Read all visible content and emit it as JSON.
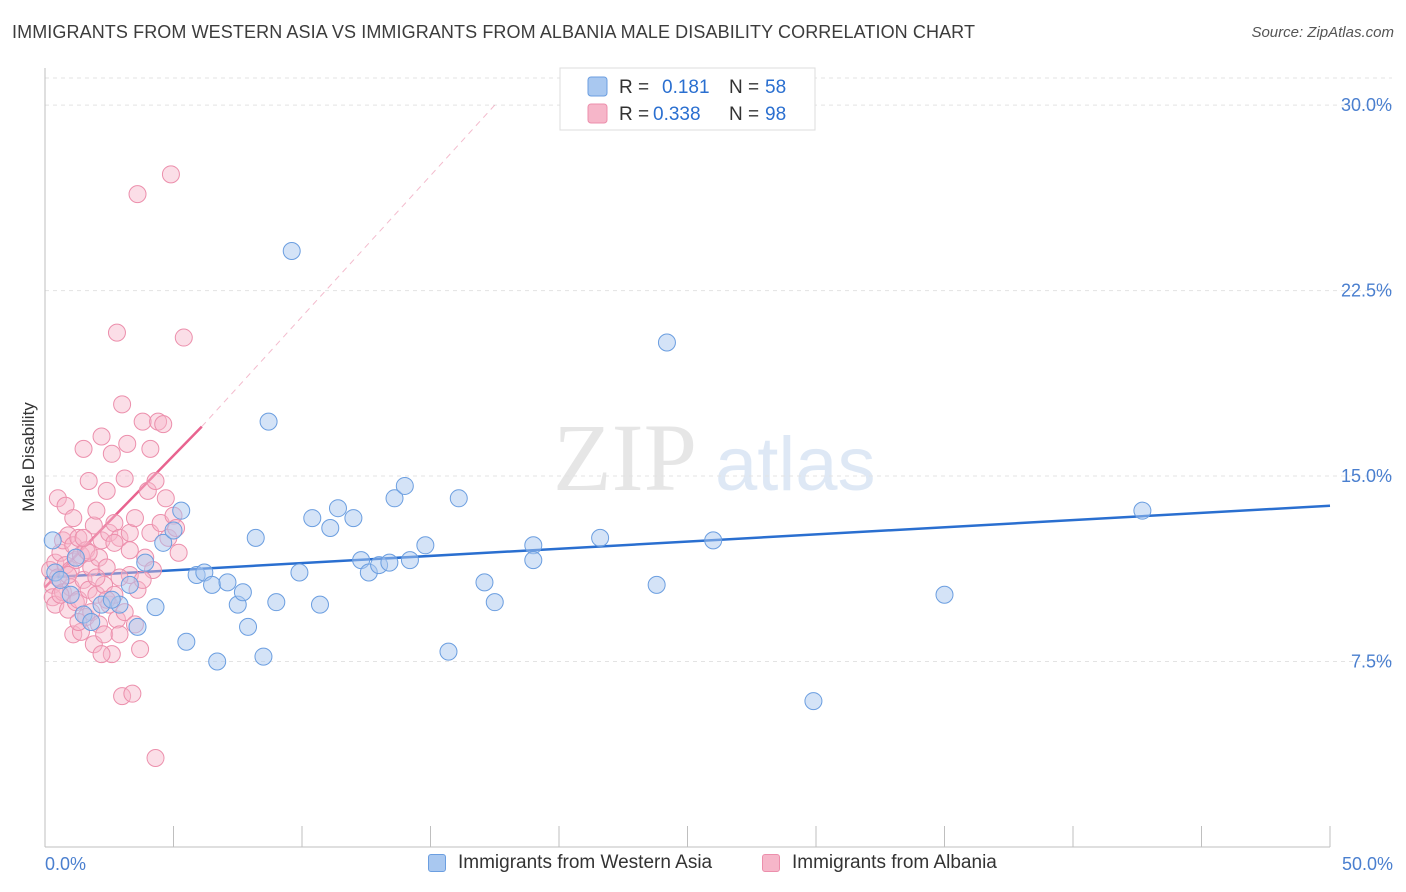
{
  "title": "IMMIGRANTS FROM WESTERN ASIA VS IMMIGRANTS FROM ALBANIA MALE DISABILITY CORRELATION CHART",
  "source": "Source: ZipAtlas.com",
  "watermark": {
    "zip": "ZIP",
    "atlas": "atlas"
  },
  "colors": {
    "blue_fill": "#a9c8f0",
    "blue_stroke": "#6b9ee0",
    "blue_line": "#2a6fd0",
    "pink_fill": "#f6b6c9",
    "pink_stroke": "#ec8fac",
    "pink_line": "#e8638f",
    "tick_text": "#4a7fcf",
    "grid": "#e3e3e3"
  },
  "legend": {
    "series1": {
      "r_label": "R =",
      "r_value": "0.181",
      "n_label": "N =",
      "n_value": "58"
    },
    "series2": {
      "r_label": "R =",
      "r_value": "0.338",
      "n_label": "N =",
      "n_value": "98"
    }
  },
  "chart_data": {
    "type": "scatter",
    "title": "IMMIGRANTS FROM WESTERN ASIA VS IMMIGRANTS FROM ALBANIA MALE DISABILITY CORRELATION CHART",
    "xlabel": "",
    "ylabel": "Male Disability",
    "xlim": [
      0,
      50
    ],
    "ylim": [
      0,
      31.5
    ],
    "x_tick_labels": [
      "0.0%",
      "50.0%"
    ],
    "y_ticks": [
      7.5,
      15.0,
      22.5,
      30.0
    ],
    "y_tick_labels": [
      "7.5%",
      "15.0%",
      "22.5%",
      "30.0%"
    ],
    "legend_position": "top-center",
    "series": [
      {
        "name": "Immigrants from Western Asia",
        "color": "#a9c8f0",
        "trend": {
          "x": [
            0,
            50
          ],
          "y": [
            10.9,
            13.8
          ],
          "style": "solid"
        },
        "points": [
          [
            0.3,
            12.4
          ],
          [
            0.4,
            11.1
          ],
          [
            1.0,
            10.2
          ],
          [
            1.5,
            9.4
          ],
          [
            1.8,
            9.1
          ],
          [
            2.2,
            9.8
          ],
          [
            2.9,
            9.8
          ],
          [
            3.3,
            10.6
          ],
          [
            3.6,
            8.9
          ],
          [
            3.9,
            11.5
          ],
          [
            4.3,
            9.7
          ],
          [
            4.6,
            12.3
          ],
          [
            5.0,
            12.8
          ],
          [
            5.3,
            13.6
          ],
          [
            5.5,
            8.3
          ],
          [
            5.9,
            11.0
          ],
          [
            6.2,
            11.1
          ],
          [
            6.5,
            10.6
          ],
          [
            6.7,
            7.5
          ],
          [
            7.1,
            10.7
          ],
          [
            7.5,
            9.8
          ],
          [
            7.7,
            10.3
          ],
          [
            7.9,
            8.9
          ],
          [
            8.2,
            12.5
          ],
          [
            8.5,
            7.7
          ],
          [
            8.7,
            17.2
          ],
          [
            9.0,
            9.9
          ],
          [
            9.6,
            24.1
          ],
          [
            9.9,
            11.1
          ],
          [
            10.4,
            13.3
          ],
          [
            10.7,
            9.8
          ],
          [
            11.1,
            12.9
          ],
          [
            11.4,
            13.7
          ],
          [
            12.0,
            13.3
          ],
          [
            12.3,
            11.6
          ],
          [
            12.6,
            11.1
          ],
          [
            13.0,
            11.4
          ],
          [
            13.4,
            11.5
          ],
          [
            13.6,
            14.1
          ],
          [
            14.0,
            14.6
          ],
          [
            14.2,
            11.6
          ],
          [
            14.8,
            12.2
          ],
          [
            15.7,
            7.9
          ],
          [
            16.1,
            14.1
          ],
          [
            17.1,
            10.7
          ],
          [
            17.5,
            9.9
          ],
          [
            19.0,
            12.2
          ],
          [
            19.0,
            11.6
          ],
          [
            21.6,
            12.5
          ],
          [
            23.8,
            10.6
          ],
          [
            24.2,
            20.4
          ],
          [
            26.0,
            12.4
          ],
          [
            29.9,
            5.9
          ],
          [
            35.0,
            10.2
          ],
          [
            42.7,
            13.6
          ],
          [
            0.6,
            10.8
          ],
          [
            1.2,
            11.7
          ],
          [
            2.6,
            10.0
          ]
        ]
      },
      {
        "name": "Immigrants from Albania",
        "color": "#f6b6c9",
        "trend": {
          "x": [
            0,
            6.1
          ],
          "y": [
            10.5,
            17.0
          ],
          "style": "solid",
          "extension": {
            "x": [
              6.1,
              17.5
            ],
            "y": [
              17.0,
              30.0
            ],
            "style": "dashed"
          }
        },
        "points": [
          [
            0.2,
            11.2
          ],
          [
            0.3,
            10.6
          ],
          [
            0.3,
            10.1
          ],
          [
            0.4,
            9.8
          ],
          [
            0.4,
            11.5
          ],
          [
            0.5,
            14.1
          ],
          [
            0.5,
            10.9
          ],
          [
            0.6,
            11.9
          ],
          [
            0.7,
            12.4
          ],
          [
            0.7,
            10.3
          ],
          [
            0.8,
            13.8
          ],
          [
            0.8,
            11.4
          ],
          [
            0.9,
            12.6
          ],
          [
            0.9,
            9.6
          ],
          [
            1.0,
            10.5
          ],
          [
            1.0,
            11.2
          ],
          [
            1.1,
            12.2
          ],
          [
            1.1,
            8.6
          ],
          [
            1.2,
            11.6
          ],
          [
            1.2,
            9.9
          ],
          [
            1.3,
            10.0
          ],
          [
            1.3,
            12.5
          ],
          [
            1.4,
            8.7
          ],
          [
            1.4,
            11.8
          ],
          [
            1.5,
            10.8
          ],
          [
            1.5,
            16.1
          ],
          [
            1.6,
            9.3
          ],
          [
            1.6,
            12.0
          ],
          [
            1.7,
            14.8
          ],
          [
            1.7,
            10.4
          ],
          [
            1.8,
            11.3
          ],
          [
            1.8,
            9.5
          ],
          [
            1.9,
            13.0
          ],
          [
            1.9,
            8.2
          ],
          [
            2.0,
            13.6
          ],
          [
            2.0,
            10.2
          ],
          [
            2.1,
            11.7
          ],
          [
            2.1,
            9.0
          ],
          [
            2.2,
            12.4
          ],
          [
            2.2,
            16.6
          ],
          [
            2.3,
            10.6
          ],
          [
            2.3,
            8.6
          ],
          [
            2.4,
            11.3
          ],
          [
            2.4,
            14.4
          ],
          [
            2.5,
            12.7
          ],
          [
            2.5,
            9.8
          ],
          [
            2.6,
            15.9
          ],
          [
            2.6,
            7.8
          ],
          [
            2.7,
            13.1
          ],
          [
            2.7,
            10.2
          ],
          [
            2.8,
            9.2
          ],
          [
            2.8,
            20.8
          ],
          [
            2.9,
            12.5
          ],
          [
            2.9,
            8.6
          ],
          [
            3.0,
            17.9
          ],
          [
            3.0,
            6.1
          ],
          [
            3.1,
            14.9
          ],
          [
            3.1,
            9.5
          ],
          [
            3.2,
            16.3
          ],
          [
            3.3,
            12.7
          ],
          [
            3.3,
            11.0
          ],
          [
            3.4,
            6.2
          ],
          [
            3.5,
            13.3
          ],
          [
            3.5,
            9.0
          ],
          [
            3.6,
            10.4
          ],
          [
            3.6,
            26.4
          ],
          [
            3.7,
            8.0
          ],
          [
            3.8,
            17.2
          ],
          [
            3.9,
            11.7
          ],
          [
            4.0,
            14.4
          ],
          [
            4.1,
            12.7
          ],
          [
            4.1,
            16.1
          ],
          [
            4.2,
            11.2
          ],
          [
            4.3,
            14.8
          ],
          [
            4.4,
            17.2
          ],
          [
            4.5,
            13.1
          ],
          [
            4.6,
            17.1
          ],
          [
            4.7,
            14.1
          ],
          [
            4.8,
            12.5
          ],
          [
            4.9,
            27.2
          ],
          [
            5.0,
            13.4
          ],
          [
            5.1,
            12.9
          ],
          [
            5.2,
            11.9
          ],
          [
            5.4,
            20.6
          ],
          [
            4.3,
            3.6
          ],
          [
            0.6,
            10.2
          ],
          [
            0.9,
            11.0
          ],
          [
            1.3,
            9.1
          ],
          [
            1.7,
            11.9
          ],
          [
            2.0,
            10.9
          ],
          [
            2.4,
            10.0
          ],
          [
            2.9,
            10.9
          ],
          [
            3.3,
            12.0
          ],
          [
            3.8,
            10.8
          ],
          [
            1.1,
            13.3
          ],
          [
            1.5,
            12.5
          ],
          [
            2.2,
            7.8
          ],
          [
            2.7,
            12.3
          ]
        ]
      }
    ]
  },
  "bottom_legend": {
    "item1": "Immigrants from Western Asia",
    "item2": "Immigrants from Albania"
  }
}
